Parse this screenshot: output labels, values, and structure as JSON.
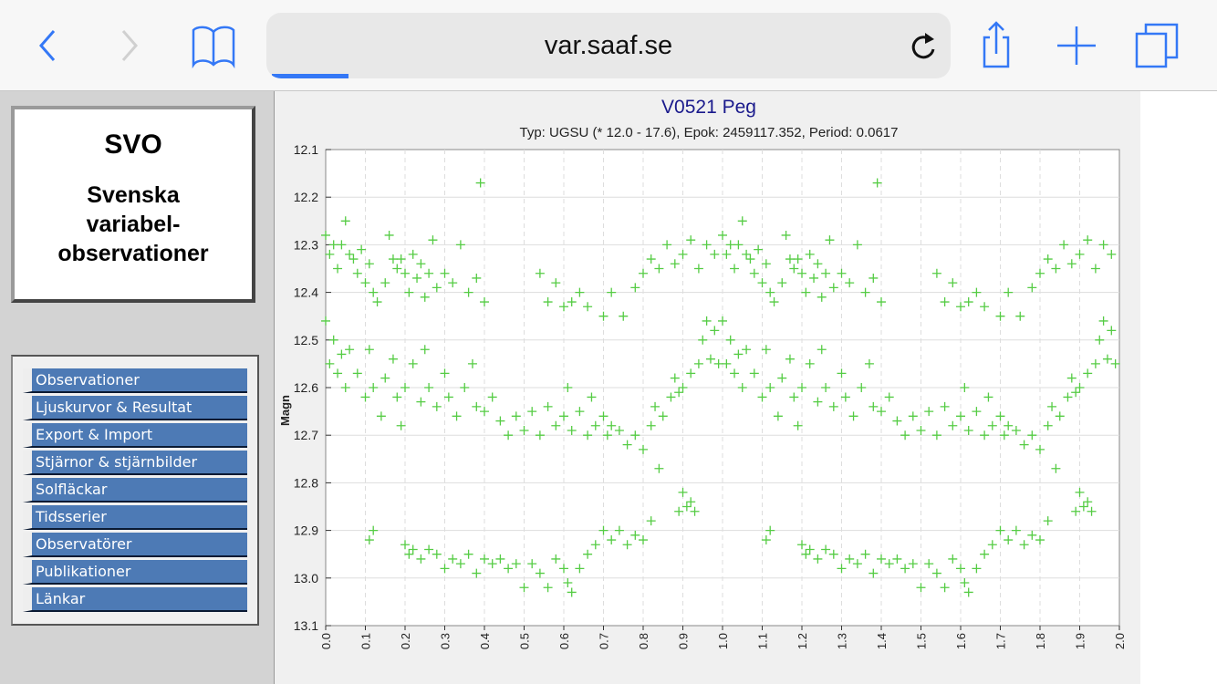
{
  "browser": {
    "url": "var.saaf.se",
    "load_progress": 0.1,
    "icons": [
      "back-icon",
      "forward-icon",
      "bookmarks-icon",
      "reload-icon",
      "share-icon",
      "new-tab-icon",
      "tabs-icon"
    ]
  },
  "logo": {
    "title": "SVO",
    "subtitle_lines": [
      "Svenska",
      "variabel-",
      "observationer"
    ]
  },
  "menu": {
    "items": [
      {
        "label": "Observationer"
      },
      {
        "label": "Ljuskurvor & Resultat"
      },
      {
        "label": "Export & Import"
      },
      {
        "label": "Stjärnor & stjärnbilder"
      },
      {
        "label": "Solfläckar"
      },
      {
        "label": "Tidsserier"
      },
      {
        "label": "Observatörer"
      },
      {
        "label": "Publikationer"
      },
      {
        "label": "Länkar"
      }
    ]
  },
  "colors": {
    "accent": "#3478f6",
    "menu_bg": "#4d7ab5",
    "title": "#1a1a8c",
    "points": "#55cc44"
  },
  "chart_data": {
    "type": "scatter",
    "title": "V0521 Peg",
    "subtitle": "Typ: UGSU (* 12.0 - 17.6), Epok: 2459117.352, Period: 0.0617",
    "xlabel": "",
    "ylabel": "Magn",
    "xlim": [
      0,
      2
    ],
    "ylim": [
      12.1,
      13.1
    ],
    "y_inverted": true,
    "xticks": [
      "0.0",
      "0.1",
      "0.2",
      "0.3",
      "0.4",
      "0.5",
      "0.6",
      "0.7",
      "0.8",
      "0.9",
      "1.0",
      "1.1",
      "1.2",
      "1.3",
      "1.4",
      "1.5",
      "1.6",
      "1.7",
      "1.8",
      "1.9",
      "2.0"
    ],
    "yticks": [
      "12.1",
      "12.2",
      "12.3",
      "12.4",
      "12.5",
      "12.6",
      "12.7",
      "12.8",
      "12.9",
      "13.0",
      "13.1"
    ],
    "grid": true,
    "marker": "plus",
    "phase_shown_twice": true,
    "points": [
      [
        0.0,
        12.28
      ],
      [
        0.01,
        12.32
      ],
      [
        0.02,
        12.3
      ],
      [
        0.03,
        12.35
      ],
      [
        0.04,
        12.3
      ],
      [
        0.05,
        12.25
      ],
      [
        0.06,
        12.32
      ],
      [
        0.07,
        12.33
      ],
      [
        0.08,
        12.36
      ],
      [
        0.09,
        12.31
      ],
      [
        0.1,
        12.38
      ],
      [
        0.11,
        12.34
      ],
      [
        0.12,
        12.4
      ],
      [
        0.13,
        12.42
      ],
      [
        0.15,
        12.38
      ],
      [
        0.16,
        12.28
      ],
      [
        0.17,
        12.33
      ],
      [
        0.18,
        12.35
      ],
      [
        0.19,
        12.33
      ],
      [
        0.2,
        12.36
      ],
      [
        0.21,
        12.4
      ],
      [
        0.22,
        12.32
      ],
      [
        0.23,
        12.37
      ],
      [
        0.24,
        12.34
      ],
      [
        0.25,
        12.41
      ],
      [
        0.26,
        12.36
      ],
      [
        0.27,
        12.29
      ],
      [
        0.28,
        12.39
      ],
      [
        0.3,
        12.36
      ],
      [
        0.32,
        12.38
      ],
      [
        0.34,
        12.3
      ],
      [
        0.36,
        12.4
      ],
      [
        0.38,
        12.37
      ],
      [
        0.39,
        12.17
      ],
      [
        0.4,
        12.42
      ],
      [
        0.54,
        12.36
      ],
      [
        0.56,
        12.42
      ],
      [
        0.58,
        12.38
      ],
      [
        0.6,
        12.43
      ],
      [
        0.62,
        12.42
      ],
      [
        0.64,
        12.4
      ],
      [
        0.66,
        12.43
      ],
      [
        0.7,
        12.45
      ],
      [
        0.72,
        12.4
      ],
      [
        0.75,
        12.45
      ],
      [
        0.78,
        12.39
      ],
      [
        0.8,
        12.36
      ],
      [
        0.82,
        12.33
      ],
      [
        0.84,
        12.35
      ],
      [
        0.86,
        12.3
      ],
      [
        0.88,
        12.34
      ],
      [
        0.9,
        12.32
      ],
      [
        0.92,
        12.29
      ],
      [
        0.94,
        12.35
      ],
      [
        0.96,
        12.3
      ],
      [
        0.98,
        12.32
      ],
      [
        0.0,
        12.46
      ],
      [
        0.01,
        12.55
      ],
      [
        0.02,
        12.5
      ],
      [
        0.03,
        12.57
      ],
      [
        0.04,
        12.53
      ],
      [
        0.05,
        12.6
      ],
      [
        0.06,
        12.52
      ],
      [
        0.08,
        12.57
      ],
      [
        0.1,
        12.62
      ],
      [
        0.11,
        12.52
      ],
      [
        0.12,
        12.6
      ],
      [
        0.14,
        12.66
      ],
      [
        0.15,
        12.58
      ],
      [
        0.17,
        12.54
      ],
      [
        0.18,
        12.62
      ],
      [
        0.19,
        12.68
      ],
      [
        0.2,
        12.6
      ],
      [
        0.22,
        12.55
      ],
      [
        0.24,
        12.63
      ],
      [
        0.25,
        12.52
      ],
      [
        0.26,
        12.6
      ],
      [
        0.28,
        12.64
      ],
      [
        0.3,
        12.57
      ],
      [
        0.31,
        12.62
      ],
      [
        0.33,
        12.66
      ],
      [
        0.35,
        12.6
      ],
      [
        0.37,
        12.55
      ],
      [
        0.38,
        12.64
      ],
      [
        0.4,
        12.65
      ],
      [
        0.42,
        12.62
      ],
      [
        0.44,
        12.67
      ],
      [
        0.46,
        12.7
      ],
      [
        0.48,
        12.66
      ],
      [
        0.5,
        12.69
      ],
      [
        0.52,
        12.65
      ],
      [
        0.54,
        12.7
      ],
      [
        0.56,
        12.64
      ],
      [
        0.58,
        12.68
      ],
      [
        0.6,
        12.66
      ],
      [
        0.61,
        12.6
      ],
      [
        0.62,
        12.69
      ],
      [
        0.64,
        12.65
      ],
      [
        0.66,
        12.7
      ],
      [
        0.67,
        12.62
      ],
      [
        0.68,
        12.68
      ],
      [
        0.7,
        12.66
      ],
      [
        0.71,
        12.7
      ],
      [
        0.72,
        12.68
      ],
      [
        0.74,
        12.69
      ],
      [
        0.76,
        12.72
      ],
      [
        0.78,
        12.7
      ],
      [
        0.8,
        12.73
      ],
      [
        0.82,
        12.68
      ],
      [
        0.83,
        12.64
      ],
      [
        0.84,
        12.77
      ],
      [
        0.85,
        12.66
      ],
      [
        0.87,
        12.62
      ],
      [
        0.88,
        12.58
      ],
      [
        0.89,
        12.61
      ],
      [
        0.9,
        12.6
      ],
      [
        0.92,
        12.57
      ],
      [
        0.94,
        12.55
      ],
      [
        0.95,
        12.5
      ],
      [
        0.96,
        12.46
      ],
      [
        0.97,
        12.54
      ],
      [
        0.98,
        12.48
      ],
      [
        0.99,
        12.55
      ],
      [
        0.11,
        12.92
      ],
      [
        0.12,
        12.9
      ],
      [
        0.2,
        12.93
      ],
      [
        0.21,
        12.95
      ],
      [
        0.22,
        12.94
      ],
      [
        0.24,
        12.96
      ],
      [
        0.26,
        12.94
      ],
      [
        0.28,
        12.95
      ],
      [
        0.3,
        12.98
      ],
      [
        0.32,
        12.96
      ],
      [
        0.34,
        12.97
      ],
      [
        0.36,
        12.95
      ],
      [
        0.38,
        12.99
      ],
      [
        0.4,
        12.96
      ],
      [
        0.42,
        12.97
      ],
      [
        0.44,
        12.96
      ],
      [
        0.46,
        12.98
      ],
      [
        0.48,
        12.97
      ],
      [
        0.5,
        13.02
      ],
      [
        0.52,
        12.97
      ],
      [
        0.54,
        12.99
      ],
      [
        0.56,
        13.02
      ],
      [
        0.58,
        12.96
      ],
      [
        0.6,
        12.98
      ],
      [
        0.61,
        13.01
      ],
      [
        0.62,
        13.03
      ],
      [
        0.64,
        12.98
      ],
      [
        0.66,
        12.95
      ],
      [
        0.68,
        12.93
      ],
      [
        0.7,
        12.9
      ],
      [
        0.72,
        12.92
      ],
      [
        0.74,
        12.9
      ],
      [
        0.76,
        12.93
      ],
      [
        0.78,
        12.91
      ],
      [
        0.8,
        12.92
      ],
      [
        0.82,
        12.88
      ],
      [
        0.89,
        12.86
      ],
      [
        0.9,
        12.82
      ],
      [
        0.91,
        12.85
      ],
      [
        0.92,
        12.84
      ],
      [
        0.93,
        12.86
      ]
    ]
  }
}
